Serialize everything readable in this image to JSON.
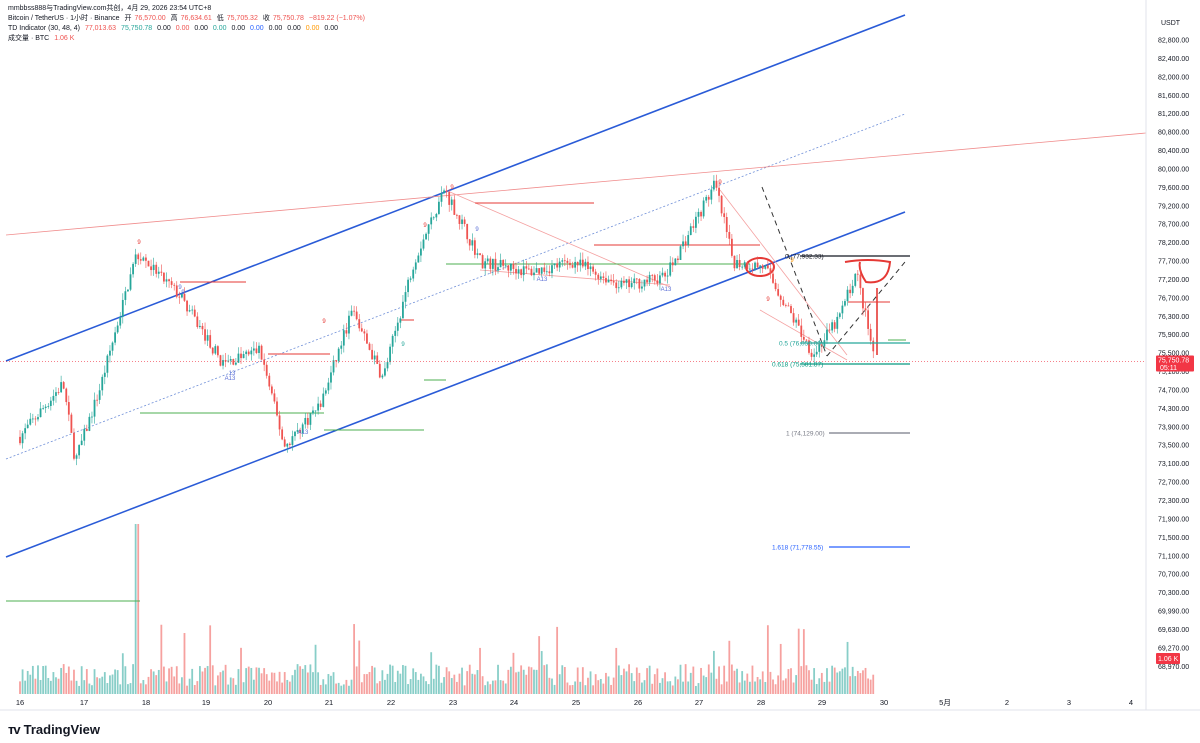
{
  "header": {
    "title": "mmbbss888与TradingView.com共创，4月 29, 2026 23:54 UTC+8",
    "symbol": "Bitcoin / TetherUS · 1小时 · Binance",
    "open_label": "开",
    "open": "76,570.00",
    "high_label": "高",
    "high": "76,634.61",
    "low_label": "低",
    "low": "75,705.32",
    "close_label": "收",
    "close": "75,750.78",
    "change": "−819.22 (−1.07%)",
    "td_label": "TD Indicator (30, 48, 4)",
    "td_values": [
      "77,013.63",
      "75,750.78",
      "0.00",
      "0.00",
      "0.00",
      "0.00",
      "0.00",
      "0.00",
      "0.00",
      "0.00",
      "0.00",
      "0.00"
    ],
    "volume_label": "成交量 · BTC",
    "volume_value": "1.06 K"
  },
  "price_axis": {
    "currency": "USDT",
    "ticks": [
      "82,800.00",
      "82,400.00",
      "82,000.00",
      "81,600.00",
      "81,200.00",
      "80,800.00",
      "80,400.00",
      "80,000.00",
      "79,600.00",
      "79,200.00",
      "78,700.00",
      "78,200.00",
      "77,700.00",
      "77,200.00",
      "76,700.00",
      "76,300.00",
      "75,900.00",
      "75,500.00",
      "75,100.00",
      "74,700.00",
      "74,300.00",
      "73,900.00",
      "73,500.00",
      "73,100.00",
      "72,700.00",
      "72,300.00",
      "71,900.00",
      "71,500.00",
      "71,100.00",
      "70,700.00",
      "70,300.00",
      "69,990.00",
      "69,630.00",
      "69,270.00",
      "68,970.00"
    ],
    "last_price": "75,750.78",
    "countdown": "05:11",
    "volume_badge": "1.06 K"
  },
  "time_axis": {
    "labels": [
      "16",
      "17",
      "18",
      "19",
      "20",
      "21",
      "22",
      "23",
      "24",
      "25",
      "26",
      "27",
      "28",
      "29",
      "30",
      "5月",
      "2",
      "3",
      "4"
    ]
  },
  "fib_levels": [
    {
      "label": "0 (77,932.33)",
      "color": "#131722"
    },
    {
      "label": "0.5 (76,050.00)",
      "color": "#26a69a"
    },
    {
      "label": "0.618 (75,581.87)",
      "color": "#089981"
    },
    {
      "label": "1 (74,129.00)",
      "color": "#787b86"
    },
    {
      "label": "1.618 (71,778.55)",
      "color": "#2962ff"
    }
  ],
  "td_marks": {
    "nines": [
      "9",
      "9",
      "9",
      "9",
      "9",
      "9",
      "9",
      "9",
      "9",
      "9",
      "9"
    ],
    "thirteens": [
      "A13",
      "A13",
      "A13",
      "A13",
      "13"
    ]
  },
  "chart_data": {
    "type": "candlestick",
    "symbol": "BTCUSDT",
    "interval": "1h",
    "x_range": [
      "16",
      "30"
    ],
    "ylim": [
      68800,
      83000
    ],
    "last_close": 75750.78,
    "grid": false,
    "key_points": [
      {
        "day": 16.0,
        "price": 74200
      },
      {
        "day": 16.7,
        "price": 75300
      },
      {
        "day": 16.9,
        "price": 73700
      },
      {
        "day": 17.3,
        "price": 75200
      },
      {
        "day": 17.9,
        "price": 78000
      },
      {
        "day": 18.6,
        "price": 77100
      },
      {
        "day": 19.3,
        "price": 75700
      },
      {
        "day": 19.9,
        "price": 76000
      },
      {
        "day": 20.3,
        "price": 74000
      },
      {
        "day": 20.9,
        "price": 74900
      },
      {
        "day": 21.4,
        "price": 76800
      },
      {
        "day": 21.9,
        "price": 75400
      },
      {
        "day": 22.4,
        "price": 77800
      },
      {
        "day": 22.9,
        "price": 79300
      },
      {
        "day": 23.5,
        "price": 77800
      },
      {
        "day": 24.3,
        "price": 77600
      },
      {
        "day": 25.0,
        "price": 77800
      },
      {
        "day": 25.8,
        "price": 77300
      },
      {
        "day": 26.5,
        "price": 77500
      },
      {
        "day": 27.3,
        "price": 79400
      },
      {
        "day": 27.6,
        "price": 77800
      },
      {
        "day": 28.1,
        "price": 77700
      },
      {
        "day": 28.5,
        "price": 76800
      },
      {
        "day": 28.9,
        "price": 75900
      },
      {
        "day": 29.3,
        "price": 76600
      },
      {
        "day": 29.6,
        "price": 77600
      },
      {
        "day": 29.9,
        "price": 75750
      }
    ],
    "volume_peak_day": 17.9
  }
}
